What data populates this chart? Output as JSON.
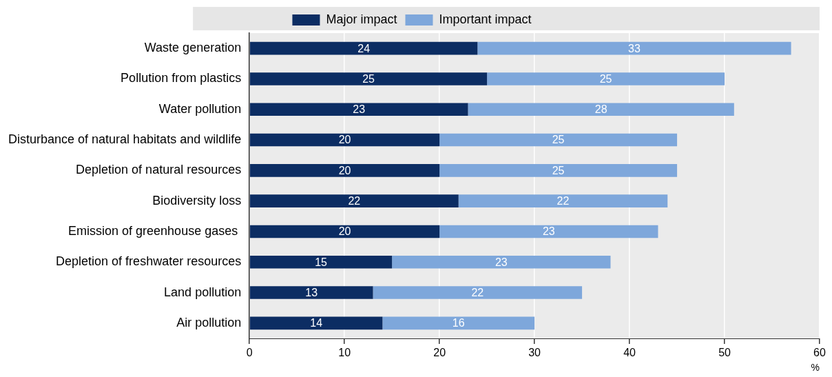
{
  "chart_data": {
    "type": "bar",
    "orientation": "horizontal",
    "stacked": true,
    "categories": [
      "Waste generation",
      "Pollution from plastics",
      "Water pollution",
      "Disturbance of natural habitats and wildlife",
      "Depletion of natural resources",
      "Biodiversity loss",
      "Emission of greenhouse gases ",
      "Depletion of freshwater resources",
      "Land pollution",
      "Air pollution"
    ],
    "series": [
      {
        "name": "Major impact",
        "color": "#0c2d63",
        "values": [
          24,
          25,
          23,
          20,
          20,
          22,
          20,
          15,
          13,
          14
        ]
      },
      {
        "name": "Important impact",
        "color": "#7ea7db",
        "values": [
          33,
          25,
          28,
          25,
          25,
          22,
          23,
          23,
          22,
          16
        ]
      }
    ],
    "xlabel": "%",
    "xlim": [
      0,
      60
    ],
    "xticks": [
      0,
      10,
      20,
      30,
      40,
      50,
      60
    ],
    "grid": "x",
    "legend": "top",
    "data_labels": true
  }
}
